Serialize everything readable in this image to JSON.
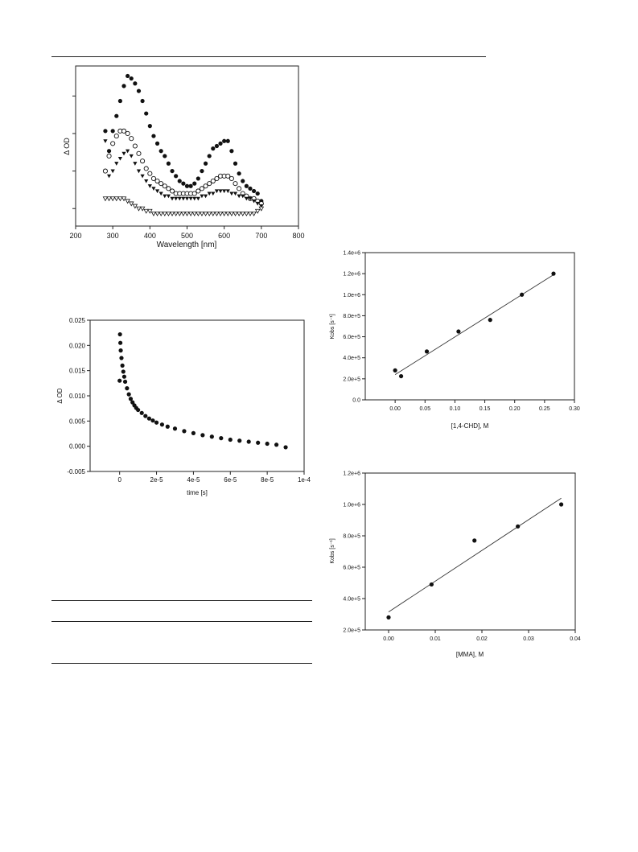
{
  "chart_data": [
    {
      "id": "spectra",
      "type": "scatter",
      "title": "",
      "xlabel": "Wavelength [nm]",
      "ylabel": "Δ OD",
      "xlim": [
        200,
        800
      ],
      "xticks": [
        200,
        300,
        400,
        500,
        600,
        700,
        800
      ],
      "y_tick_labels_shown": false,
      "grid": false,
      "legend": "none",
      "series": [
        {
          "marker": "filled-circle",
          "x": [
            280,
            290,
            300,
            310,
            320,
            330,
            340,
            350,
            360,
            370,
            380,
            390,
            400,
            410,
            420,
            430,
            440,
            450,
            460,
            470,
            480,
            490,
            500,
            510,
            520,
            530,
            540,
            550,
            560,
            570,
            580,
            590,
            600,
            610,
            620,
            630,
            640,
            650,
            660,
            670,
            680,
            690,
            700
          ],
          "y": [
            6.6,
            5.8,
            6.6,
            7.2,
            7.8,
            8.4,
            8.8,
            8.7,
            8.5,
            8.2,
            7.8,
            7.3,
            6.8,
            6.4,
            6.1,
            5.8,
            5.6,
            5.3,
            5.0,
            4.8,
            4.6,
            4.5,
            4.4,
            4.4,
            4.5,
            4.7,
            5.0,
            5.3,
            5.6,
            5.9,
            6.0,
            6.1,
            6.2,
            6.2,
            5.8,
            5.3,
            4.9,
            4.6,
            4.4,
            4.3,
            4.2,
            4.1,
            3.8
          ]
        },
        {
          "marker": "open-circle",
          "x": [
            280,
            290,
            300,
            310,
            320,
            330,
            340,
            350,
            360,
            370,
            380,
            390,
            400,
            410,
            420,
            430,
            440,
            450,
            460,
            470,
            480,
            490,
            500,
            510,
            520,
            530,
            540,
            550,
            560,
            570,
            580,
            590,
            600,
            610,
            620,
            630,
            640,
            650,
            660,
            670,
            680,
            690,
            700
          ],
          "y": [
            5.0,
            5.6,
            6.1,
            6.4,
            6.6,
            6.6,
            6.5,
            6.3,
            6.0,
            5.7,
            5.4,
            5.1,
            4.9,
            4.7,
            4.6,
            4.5,
            4.4,
            4.3,
            4.2,
            4.1,
            4.1,
            4.1,
            4.1,
            4.1,
            4.1,
            4.2,
            4.3,
            4.4,
            4.5,
            4.6,
            4.7,
            4.8,
            4.8,
            4.8,
            4.7,
            4.5,
            4.3,
            4.1,
            4.0,
            3.9,
            3.9,
            3.8,
            3.7
          ]
        },
        {
          "marker": "filled-triangle-down",
          "x": [
            280,
            290,
            300,
            310,
            320,
            330,
            340,
            350,
            360,
            370,
            380,
            390,
            400,
            410,
            420,
            430,
            440,
            450,
            460,
            470,
            480,
            490,
            500,
            510,
            520,
            530,
            540,
            550,
            560,
            570,
            580,
            590,
            600,
            610,
            620,
            630,
            640,
            650,
            660,
            670,
            680,
            690,
            700
          ],
          "y": [
            6.2,
            4.8,
            5.0,
            5.3,
            5.5,
            5.7,
            5.8,
            5.6,
            5.3,
            5.0,
            4.8,
            4.6,
            4.4,
            4.3,
            4.2,
            4.1,
            4.0,
            4.0,
            3.9,
            3.9,
            3.9,
            3.9,
            3.9,
            3.9,
            3.9,
            3.9,
            4.0,
            4.0,
            4.1,
            4.1,
            4.2,
            4.2,
            4.2,
            4.2,
            4.1,
            4.1,
            4.0,
            4.0,
            3.9,
            3.9,
            3.8,
            3.7,
            3.6
          ]
        },
        {
          "marker": "open-triangle-down",
          "x": [
            280,
            290,
            300,
            310,
            320,
            330,
            340,
            350,
            360,
            370,
            380,
            390,
            400,
            410,
            420,
            430,
            440,
            450,
            460,
            470,
            480,
            490,
            500,
            510,
            520,
            530,
            540,
            550,
            560,
            570,
            580,
            590,
            600,
            610,
            620,
            630,
            640,
            650,
            660,
            670,
            680,
            690,
            700
          ],
          "y": [
            3.9,
            3.9,
            3.9,
            3.9,
            3.9,
            3.9,
            3.8,
            3.7,
            3.6,
            3.5,
            3.5,
            3.4,
            3.4,
            3.3,
            3.3,
            3.3,
            3.3,
            3.3,
            3.3,
            3.3,
            3.3,
            3.3,
            3.3,
            3.3,
            3.3,
            3.3,
            3.3,
            3.3,
            3.3,
            3.3,
            3.3,
            3.3,
            3.3,
            3.3,
            3.3,
            3.3,
            3.3,
            3.3,
            3.3,
            3.3,
            3.3,
            3.4,
            3.5
          ]
        }
      ]
    },
    {
      "id": "decay",
      "type": "scatter",
      "title": "",
      "xlabel": "time [s]",
      "ylabel": "Δ OD",
      "xlim": [
        -1.6e-05,
        0.0001
      ],
      "ylim": [
        -0.005,
        0.025
      ],
      "xtick_values": [
        0,
        2e-05,
        4e-05,
        6e-05,
        8e-05,
        0.0001
      ],
      "xtick_labels": [
        "0",
        "2e-5",
        "4e-5",
        "6e-5",
        "8e-5",
        "1e-4"
      ],
      "ytick_values": [
        -0.005,
        0.0,
        0.005,
        0.01,
        0.015,
        0.02,
        0.025
      ],
      "ytick_labels": [
        "-0.005",
        "0.000",
        "0.005",
        "0.010",
        "0.015",
        "0.020",
        "0.025"
      ],
      "grid": false,
      "legend": "none",
      "series": [
        {
          "marker": "filled-circle",
          "x": [
            0,
            2e-07,
            4e-07,
            6e-07,
            1e-06,
            1.5e-06,
            2e-06,
            2.5e-06,
            3e-06,
            4e-06,
            5e-06,
            6e-06,
            7e-06,
            8e-06,
            9e-06,
            1e-05,
            1.2e-05,
            1.4e-05,
            1.6e-05,
            1.8e-05,
            2e-05,
            2.3e-05,
            2.6e-05,
            3e-05,
            3.5e-05,
            4e-05,
            4.5e-05,
            5e-05,
            5.5e-05,
            6e-05,
            6.5e-05,
            7e-05,
            7.5e-05,
            8e-05,
            8.5e-05,
            9e-05
          ],
          "y": [
            0.013,
            0.0222,
            0.0205,
            0.019,
            0.0175,
            0.016,
            0.0148,
            0.0138,
            0.0128,
            0.0115,
            0.0103,
            0.0094,
            0.0087,
            0.0081,
            0.0076,
            0.0072,
            0.0066,
            0.006,
            0.0055,
            0.0051,
            0.0047,
            0.0043,
            0.0039,
            0.0035,
            0.003,
            0.0026,
            0.0022,
            0.0019,
            0.0016,
            0.0013,
            0.0011,
            0.0009,
            0.0007,
            0.0005,
            0.0003,
            -0.0002
          ]
        }
      ]
    },
    {
      "id": "kobs-chd",
      "type": "scatter",
      "title": "",
      "xlabel": "[1,4-CHD], M",
      "ylabel": "Kobs [s⁻¹]",
      "xlim": [
        -0.05,
        0.3
      ],
      "ylim": [
        0,
        1400000
      ],
      "xtick_values": [
        0.0,
        0.05,
        0.1,
        0.15,
        0.2,
        0.25,
        0.3
      ],
      "xtick_labels": [
        "0.00",
        "0.05",
        "0.10",
        "0.15",
        "0.20",
        "0.25",
        "0.30"
      ],
      "ytick_values": [
        0,
        200000,
        400000,
        600000,
        800000,
        1000000,
        1200000,
        1400000
      ],
      "ytick_labels": [
        "0.0",
        "2.0e+5",
        "4.0e+5",
        "6.0e+5",
        "8.0e+5",
        "1.0e+6",
        "1.2e+6",
        "1.4e+6"
      ],
      "grid": false,
      "legend": "none",
      "series": [
        {
          "marker": "filled-circle",
          "x": [
            0.0,
            0.01,
            0.053,
            0.106,
            0.159,
            0.212,
            0.265
          ],
          "y": [
            280000,
            225000,
            460000,
            650000,
            760000,
            1000000,
            1200000
          ]
        }
      ],
      "fit_line": {
        "x": [
          0.0,
          0.265
        ],
        "y": [
          240000,
          1190000
        ]
      }
    },
    {
      "id": "kobs-mma",
      "type": "scatter",
      "title": "",
      "xlabel": "[MMA], M",
      "ylabel": "Kobs [s⁻¹]",
      "xlim": [
        -0.005,
        0.04
      ],
      "ylim": [
        200000,
        1200000
      ],
      "xtick_values": [
        0.0,
        0.01,
        0.02,
        0.03,
        0.04
      ],
      "xtick_labels": [
        "0.00",
        "0.01",
        "0.02",
        "0.03",
        "0.04"
      ],
      "ytick_values": [
        200000,
        400000,
        600000,
        800000,
        1000000,
        1200000
      ],
      "ytick_labels": [
        "2.0e+5",
        "4.0e+5",
        "6.0e+5",
        "8.0e+5",
        "1.0e+6",
        "1.2e+6"
      ],
      "grid": false,
      "legend": "none",
      "series": [
        {
          "marker": "filled-circle",
          "x": [
            0.0,
            0.0092,
            0.0184,
            0.0277,
            0.037
          ],
          "y": [
            280000,
            490000,
            770000,
            860000,
            1000000
          ]
        }
      ],
      "fit_line": {
        "x": [
          0.0,
          0.037
        ],
        "y": [
          315000,
          1040000
        ]
      }
    }
  ]
}
